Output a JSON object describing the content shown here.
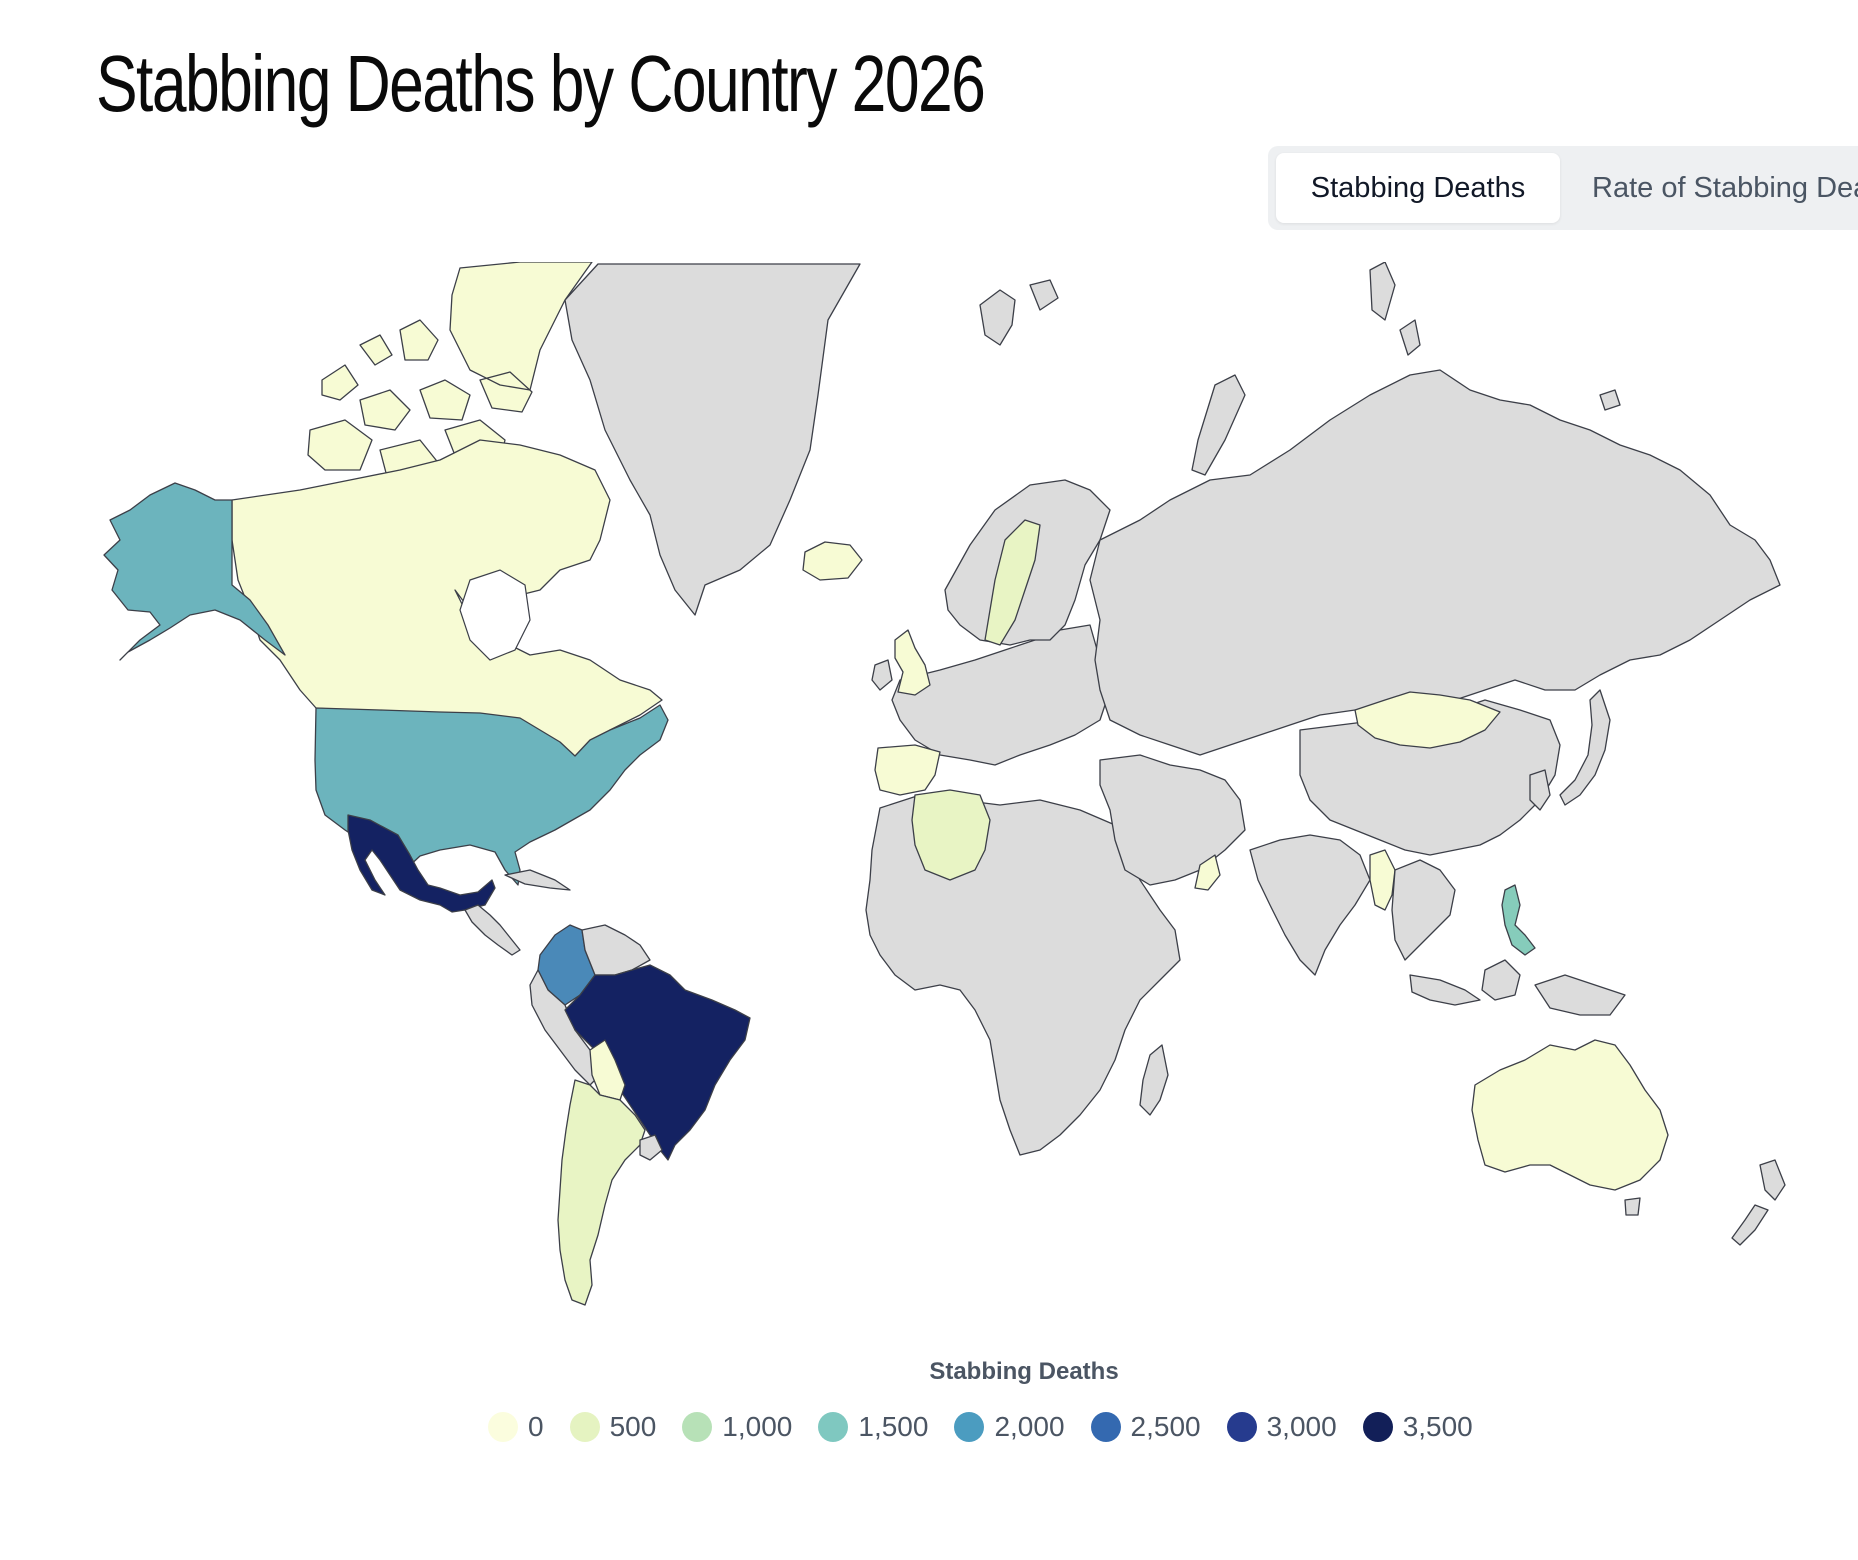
{
  "title": "Stabbing Deaths by Country 2026",
  "tabs": [
    {
      "label": "Stabbing Deaths",
      "active": true
    },
    {
      "label": "Rate of Stabbing Deaths",
      "active": false
    }
  ],
  "legend": {
    "title": "Stabbing Deaths",
    "items": [
      {
        "label": "0",
        "color": "#fbfdde"
      },
      {
        "label": "500",
        "color": "#e5f3c1"
      },
      {
        "label": "1,000",
        "color": "#b7e1b7"
      },
      {
        "label": "1,500",
        "color": "#7fc8c0"
      },
      {
        "label": "2,000",
        "color": "#4b9cc0"
      },
      {
        "label": "2,500",
        "color": "#3469b0"
      },
      {
        "label": "3,000",
        "color": "#263b8e"
      },
      {
        "label": "3,500",
        "color": "#121f58"
      }
    ]
  },
  "colors": {
    "no_data": "#dcdcdc",
    "lowest": "#f7fbd4",
    "low": "#e8f4c4",
    "mid_teal": "#6cb4bd",
    "light_teal": "#86ccbb",
    "steel_blue": "#4a89b8",
    "darkest": "#142262"
  },
  "regions": [
    {
      "name": "Canada",
      "color": "lowest"
    },
    {
      "name": "Canadian Arctic Islands",
      "color": "lowest"
    },
    {
      "name": "Alaska",
      "color": "mid_teal"
    },
    {
      "name": "United States",
      "color": "mid_teal"
    },
    {
      "name": "Mexico",
      "color": "darkest"
    },
    {
      "name": "Brazil",
      "color": "darkest"
    },
    {
      "name": "Colombia",
      "color": "steel_blue"
    },
    {
      "name": "Philippines",
      "color": "light_teal"
    },
    {
      "name": "Greenland",
      "color": "no_data"
    },
    {
      "name": "Russia",
      "color": "no_data"
    },
    {
      "name": "China",
      "color": "no_data"
    },
    {
      "name": "Mongolia",
      "color": "lowest"
    },
    {
      "name": "Australia",
      "color": "lowest"
    },
    {
      "name": "Algeria",
      "color": "low"
    },
    {
      "name": "Argentina",
      "color": "low"
    },
    {
      "name": "Bolivia",
      "color": "lowest"
    },
    {
      "name": "Sweden",
      "color": "low"
    },
    {
      "name": "United Kingdom",
      "color": "lowest"
    },
    {
      "name": "Spain",
      "color": "lowest"
    },
    {
      "name": "Iceland",
      "color": "lowest"
    },
    {
      "name": "Myanmar",
      "color": "lowest"
    },
    {
      "name": "Oman",
      "color": "lowest"
    },
    {
      "name": "Africa",
      "color": "no_data"
    },
    {
      "name": "Europe",
      "color": "no_data"
    },
    {
      "name": "Middle East",
      "color": "no_data"
    },
    {
      "name": "India",
      "color": "no_data"
    },
    {
      "name": "Southeast Asia",
      "color": "no_data"
    },
    {
      "name": "Japan",
      "color": "no_data"
    },
    {
      "name": "New Zealand",
      "color": "no_data"
    },
    {
      "name": "Madagascar",
      "color": "no_data"
    },
    {
      "name": "Peru",
      "color": "no_data"
    },
    {
      "name": "Venezuela",
      "color": "no_data"
    },
    {
      "name": "Svalbard",
      "color": "no_data"
    },
    {
      "name": "Novaya Zemlya",
      "color": "no_data"
    }
  ]
}
